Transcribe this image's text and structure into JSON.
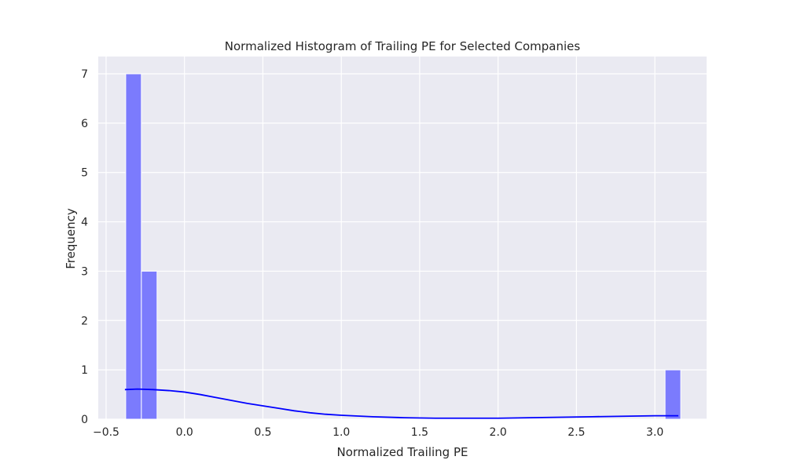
{
  "chart_data": {
    "type": "bar",
    "title": "Normalized Histogram of Trailing PE for Selected Companies",
    "xlabel": "Normalized Trailing PE",
    "ylabel": "Frequency",
    "xlim": [
      -0.55,
      3.33
    ],
    "ylim": [
      0,
      7.35
    ],
    "x_ticks": [
      -0.5,
      0.0,
      0.5,
      1.0,
      1.5,
      2.0,
      2.5,
      3.0
    ],
    "x_tick_labels": [
      "−0.5",
      "0.0",
      "0.5",
      "1.0",
      "1.5",
      "2.0",
      "2.5",
      "3.0"
    ],
    "y_ticks": [
      0,
      1,
      2,
      3,
      4,
      5,
      6,
      7
    ],
    "y_tick_labels": [
      "0",
      "1",
      "2",
      "3",
      "4",
      "5",
      "6",
      "7"
    ],
    "grid": true,
    "bins": [
      {
        "x0": -0.375,
        "x1": -0.275,
        "count": 7
      },
      {
        "x0": -0.275,
        "x1": -0.175,
        "count": 3
      },
      {
        "x0": 3.065,
        "x1": 3.165,
        "count": 1
      }
    ],
    "kde": {
      "x": [
        -0.38,
        -0.3,
        -0.2,
        -0.1,
        0.0,
        0.1,
        0.2,
        0.3,
        0.4,
        0.5,
        0.6,
        0.7,
        0.8,
        0.9,
        1.0,
        1.2,
        1.4,
        1.6,
        1.8,
        2.0,
        2.2,
        2.4,
        2.6,
        2.8,
        3.0,
        3.15
      ],
      "y": [
        0.6,
        0.61,
        0.6,
        0.58,
        0.55,
        0.5,
        0.44,
        0.38,
        0.32,
        0.27,
        0.22,
        0.17,
        0.13,
        0.1,
        0.08,
        0.05,
        0.03,
        0.02,
        0.02,
        0.02,
        0.03,
        0.04,
        0.05,
        0.06,
        0.07,
        0.07
      ]
    },
    "colors": {
      "background": "#eaeaf2",
      "grid": "#ffffff",
      "bar_fill": "#7b7bfd",
      "bar_edge": "#ffffff",
      "kde_line": "#0000ff"
    }
  }
}
